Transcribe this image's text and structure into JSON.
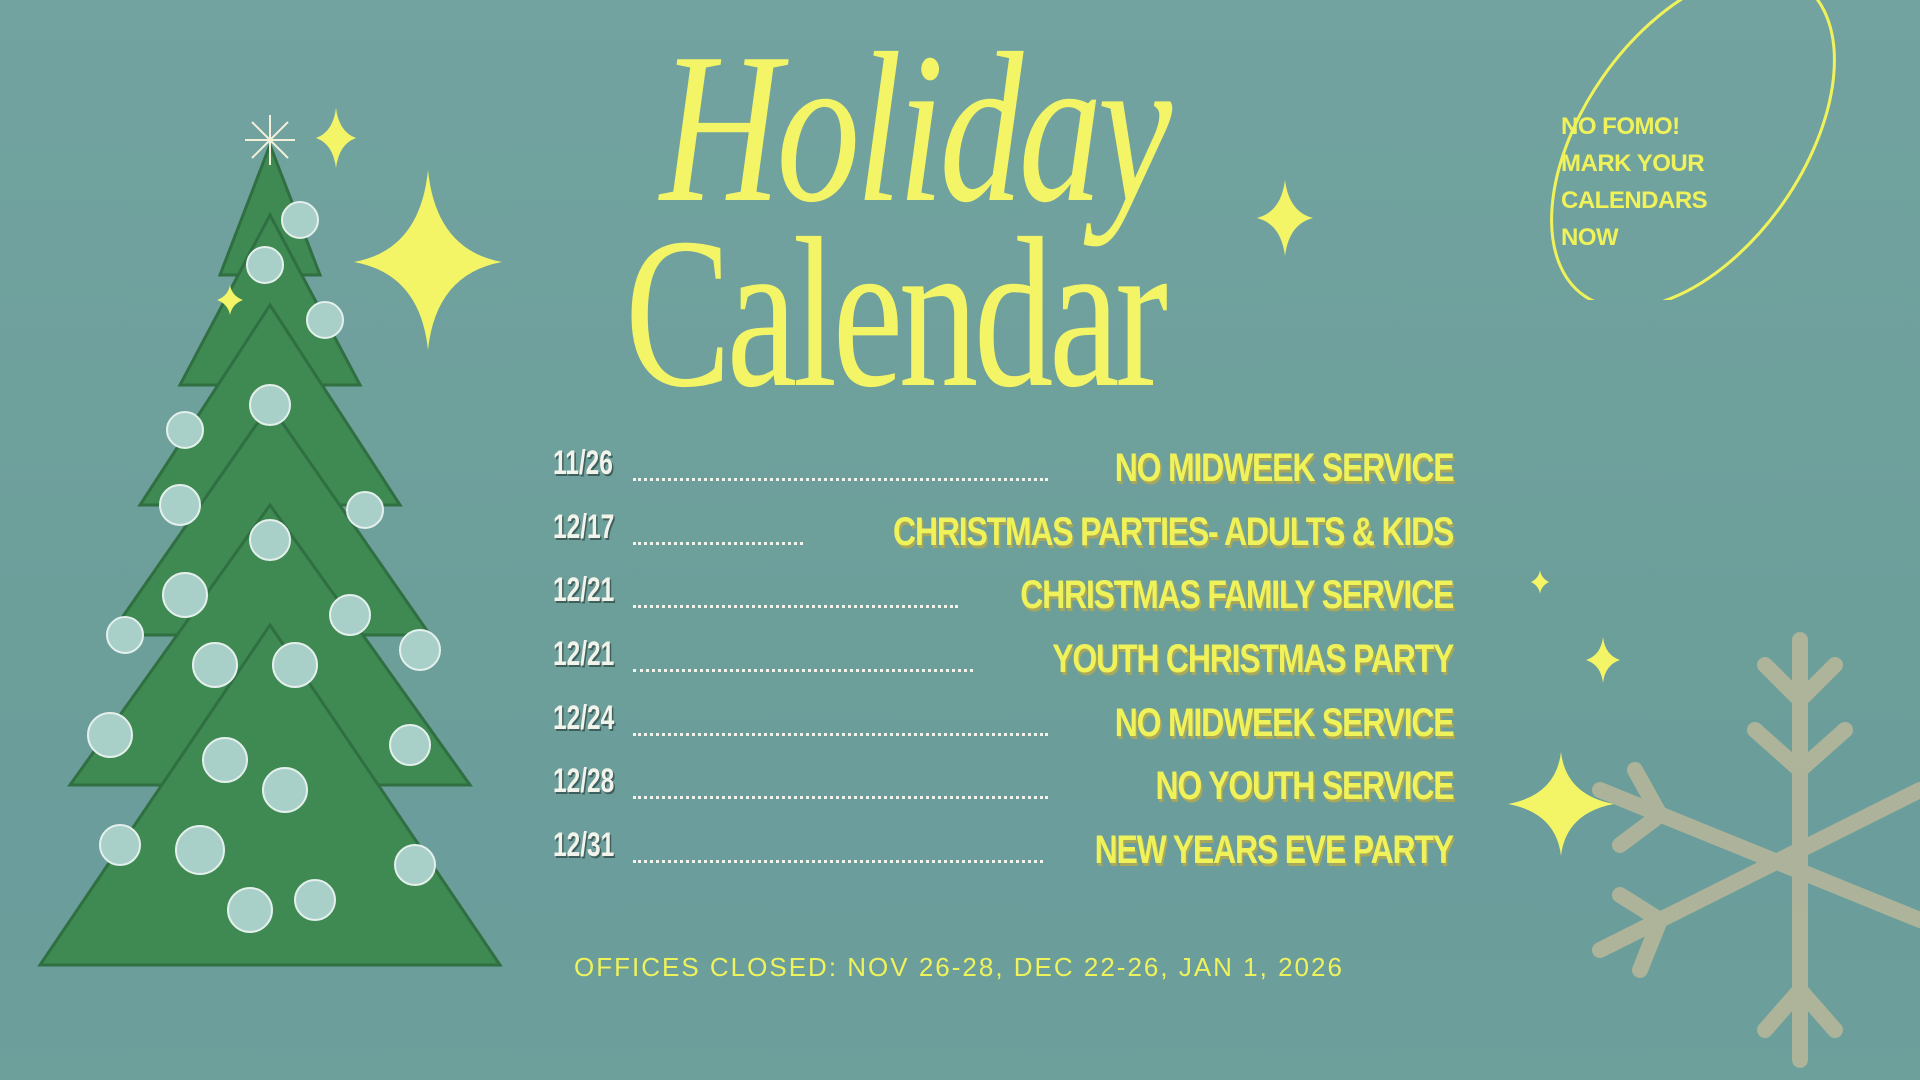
{
  "title": {
    "line1": "Holiday",
    "line2": "Calendar"
  },
  "callout": {
    "lines": [
      "NO FOMO!",
      "MARK YOUR",
      "CALENDARS",
      "NOW"
    ]
  },
  "events": [
    {
      "date": "11/26",
      "label": "NO MIDWEEK SERVICE"
    },
    {
      "date": "12/17",
      "label": "CHRISTMAS PARTIES- ADULTS & KIDS"
    },
    {
      "date": "12/21",
      "label": "CHRISTMAS FAMILY SERVICE"
    },
    {
      "date": "12/21",
      "label": "YOUTH CHRISTMAS PARTY"
    },
    {
      "date": "12/24",
      "label": "NO MIDWEEK SERVICE"
    },
    {
      "date": "12/28",
      "label": "NO YOUTH SERVICE"
    },
    {
      "date": "12/31",
      "label": "NEW YEARS EVE PARTY"
    }
  ],
  "footer": "OFFICES CLOSED: NOV 26-28, DEC 22-26, JAN 1, 2026",
  "colors": {
    "background": "#6fa09c",
    "accent": "#f3f566",
    "date_text": "#f2f4ec",
    "tree": "#3f8a52"
  }
}
